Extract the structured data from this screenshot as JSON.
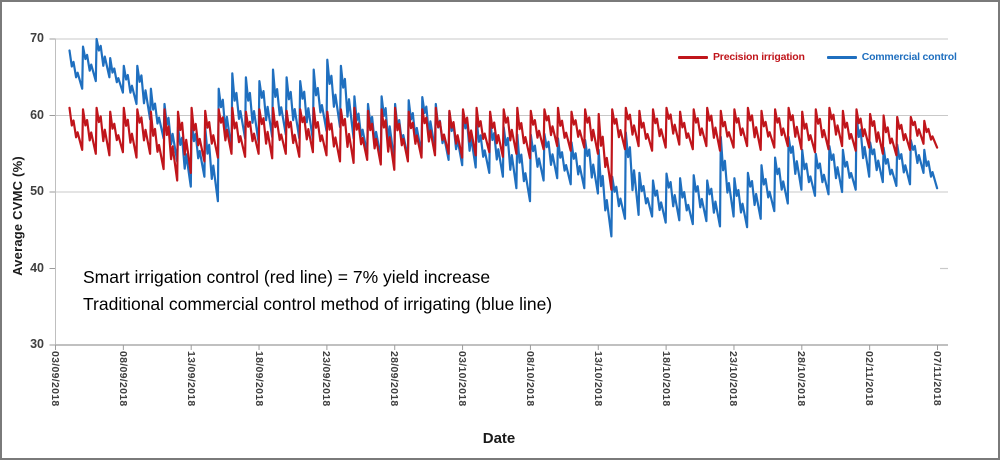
{
  "figure": {
    "background": "#ffffff",
    "border_color": "#7a7a7a",
    "grid_color": "#c9c9c9",
    "axis_color": "#9b9b9b",
    "tick_label_color": "#3f3f3f"
  },
  "chart_data": {
    "type": "line",
    "title": "",
    "xlabel": "Date",
    "ylabel": "Average CVMC (%)",
    "ylim": [
      30,
      70
    ],
    "y_ticks": [
      70,
      60,
      50,
      40,
      30
    ],
    "x_tick_labels": [
      "03/09/2018",
      "08/09/2018",
      "13/09/2018",
      "18/09/2018",
      "23/09/2018",
      "28/09/2018",
      "03/10/2018",
      "08/10/2018",
      "13/10/2018",
      "18/10/2018",
      "23/10/2018",
      "28/10/2018",
      "02/11/2018",
      "07/11/2018"
    ],
    "x_tick_interval_days": 5,
    "x_total_days": 65,
    "grid": "horizontal",
    "legend_position": "top-right",
    "sampling_note": "daily_peak_trough = [daily irrigation peak %, end-of-day trough %] per day starting 04/09/2018",
    "series": [
      {
        "name": "Precision irrigation",
        "color": "#C0151B",
        "start_day": 1,
        "daily_peak_trough": [
          [
            61,
            55.5
          ],
          [
            60.8,
            55
          ],
          [
            61,
            54.8
          ],
          [
            60.5,
            55.2
          ],
          [
            61,
            54.5
          ],
          [
            60.8,
            55
          ],
          [
            60.5,
            53
          ],
          [
            60.8,
            51.5
          ],
          [
            60.5,
            52.5
          ],
          [
            61,
            54
          ],
          [
            60.6,
            54.5
          ],
          [
            60.8,
            55
          ],
          [
            61,
            54.6
          ],
          [
            60.5,
            55
          ],
          [
            60.8,
            54.4
          ],
          [
            61,
            55
          ],
          [
            60.6,
            54.6
          ],
          [
            60.8,
            55.2
          ],
          [
            61,
            54.8
          ],
          [
            60.5,
            54
          ],
          [
            60.8,
            53.8
          ],
          [
            61,
            54.2
          ],
          [
            60.6,
            53.6
          ],
          [
            60.8,
            52.9
          ],
          [
            61,
            54
          ],
          [
            60.5,
            54.5
          ],
          [
            60.8,
            54.8
          ],
          [
            61,
            55
          ],
          [
            60.6,
            54.5
          ],
          [
            60.8,
            54.8
          ],
          [
            61,
            55.2
          ],
          [
            60.5,
            54.6
          ],
          [
            60.8,
            55
          ],
          [
            61,
            54.4
          ],
          [
            60.6,
            55.6
          ],
          [
            60.8,
            56
          ],
          [
            61,
            55.4
          ],
          [
            60.5,
            55.8
          ],
          [
            60.8,
            55
          ],
          [
            60.2,
            50.3
          ],
          [
            60.8,
            55.6
          ],
          [
            61,
            56
          ],
          [
            60.6,
            55.4
          ],
          [
            60.8,
            55.8
          ],
          [
            61,
            56.2
          ],
          [
            60.5,
            55.6
          ],
          [
            60.8,
            56
          ],
          [
            61,
            55.4
          ],
          [
            60.6,
            55.8
          ],
          [
            60.8,
            56
          ],
          [
            61,
            55.5
          ],
          [
            60.6,
            55.8
          ],
          [
            60.8,
            56
          ],
          [
            61,
            55.6
          ],
          [
            60.5,
            55.2
          ],
          [
            60.8,
            55.6
          ],
          [
            61,
            56
          ],
          [
            60.6,
            55.4
          ],
          [
            60.8,
            55.8
          ],
          [
            60.2,
            55
          ],
          [
            60,
            54.8
          ],
          [
            59.8,
            55.5
          ],
          [
            59.8,
            56.3
          ],
          [
            59.3,
            55.8
          ]
        ]
      },
      {
        "name": "Commercial control",
        "color": "#1F6FBF",
        "start_day": 1,
        "daily_peak_trough": [
          [
            68.5,
            63.5
          ],
          [
            69,
            64.5
          ],
          [
            70,
            65
          ],
          [
            67.5,
            63
          ],
          [
            66.5,
            61.5
          ],
          [
            66.5,
            59.5
          ],
          [
            63.5,
            57
          ],
          [
            61.5,
            54
          ],
          [
            58.5,
            50.7
          ],
          [
            60,
            52
          ],
          [
            58.5,
            48.8
          ],
          [
            63.5,
            55.5
          ],
          [
            65.5,
            57
          ],
          [
            65,
            56.5
          ],
          [
            64.5,
            57.2
          ],
          [
            66,
            57.5
          ],
          [
            65,
            57
          ],
          [
            64.5,
            56.8
          ],
          [
            66,
            58
          ],
          [
            67.3,
            58.5
          ],
          [
            66.5,
            57
          ],
          [
            62.5,
            55
          ],
          [
            61.5,
            54.5
          ],
          [
            62.5,
            54
          ],
          [
            61.5,
            54.5
          ],
          [
            62,
            55
          ],
          [
            62.4,
            55.5
          ],
          [
            61.5,
            54.2
          ],
          [
            60.5,
            53.5
          ],
          [
            60.5,
            53.2
          ],
          [
            59.5,
            52.5
          ],
          [
            59.5,
            52
          ],
          [
            58.5,
            50.5
          ],
          [
            57.5,
            48.8
          ],
          [
            57.5,
            51.5
          ],
          [
            57.6,
            51.8
          ],
          [
            57,
            51
          ],
          [
            56.5,
            50.5
          ],
          [
            56.8,
            49.8
          ],
          [
            55.5,
            44.2
          ],
          [
            52,
            46.5
          ],
          [
            57.8,
            47
          ],
          [
            52.5,
            46.8
          ],
          [
            51.5,
            46
          ],
          [
            52.4,
            46.3
          ],
          [
            51.8,
            45.8
          ],
          [
            52.2,
            46.2
          ],
          [
            51.5,
            45.5
          ],
          [
            57.2,
            46.8
          ],
          [
            51.8,
            45.4
          ],
          [
            52.5,
            46.5
          ],
          [
            53.5,
            47.5
          ],
          [
            54.5,
            48.5
          ],
          [
            57.2,
            50.3
          ],
          [
            55.5,
            49.5
          ],
          [
            55,
            49.7
          ],
          [
            56,
            50
          ],
          [
            55.5,
            50.3
          ],
          [
            60.1,
            52
          ],
          [
            56.5,
            51.3
          ],
          [
            55.8,
            50.8
          ],
          [
            56.2,
            51
          ],
          [
            56.8,
            52.5
          ],
          [
            55.5,
            50.5
          ]
        ]
      }
    ]
  },
  "legend": {
    "items": [
      {
        "label": "Precision irrigation",
        "color": "#C0151B"
      },
      {
        "label": "Commercial control",
        "color": "#1F6FBF"
      }
    ]
  },
  "annotation": {
    "line1": "Smart irrigation control (red line) = 7% yield increase",
    "line2": "Traditional commercial control method of irrigating (blue line)"
  }
}
